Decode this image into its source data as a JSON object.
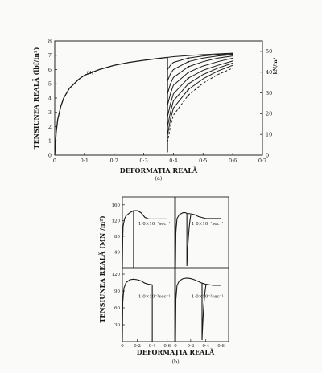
{
  "chart_data": [
    {
      "type": "line",
      "caption": "(a)",
      "xlabel": "DEFORMAȚIA REALĂ",
      "ylabel": "TENSIUNEA REALĂ (lbf/in²)",
      "y2label": "kN/m²",
      "xlim": [
        0,
        0.7
      ],
      "ylim": [
        0,
        8
      ],
      "y2lim": [
        0,
        55
      ],
      "xticks": [
        "0",
        "0·1",
        "0·2",
        "0·3",
        "0·4",
        "0·5",
        "0·6",
        "0·7"
      ],
      "yticks": [
        "0",
        "1",
        "2",
        "3",
        "4",
        "5",
        "6",
        "7",
        "8"
      ],
      "y2ticks": [
        "0",
        "10",
        "20",
        "30",
        "40",
        "50"
      ],
      "annotation": "(d)",
      "series": [
        {
          "x": [
            0,
            0.005,
            0.01,
            0.02,
            0.03,
            0.05,
            0.08,
            0.1,
            0.15,
            0.2,
            0.25,
            0.3,
            0.35,
            0.38
          ],
          "y": [
            0,
            1.6,
            2.5,
            3.4,
            4.0,
            4.7,
            5.3,
            5.6,
            6.0,
            6.3,
            6.5,
            6.65,
            6.78,
            6.85
          ]
        },
        {
          "x": [
            0.38,
            0.4,
            0.45,
            0.5,
            0.55,
            0.6
          ],
          "y": [
            6.85,
            6.9,
            6.98,
            7.05,
            7.1,
            7.15
          ]
        },
        {
          "x": [
            0.38,
            0.39,
            0.4,
            0.45,
            0.5,
            0.55,
            0.6
          ],
          "y": [
            6.0,
            6.3,
            6.5,
            6.8,
            6.95,
            7.05,
            7.1
          ]
        },
        {
          "x": [
            0.38,
            0.39,
            0.4,
            0.45,
            0.5,
            0.55,
            0.6
          ],
          "y": [
            5.2,
            5.7,
            6.0,
            6.55,
            6.8,
            6.95,
            7.05
          ]
        },
        {
          "x": [
            0.38,
            0.39,
            0.4,
            0.45,
            0.5,
            0.55,
            0.6
          ],
          "y": [
            4.3,
            5.0,
            5.45,
            6.2,
            6.55,
            6.8,
            6.95
          ]
        },
        {
          "x": [
            0.38,
            0.39,
            0.4,
            0.45,
            0.5,
            0.55,
            0.6
          ],
          "y": [
            3.5,
            4.3,
            4.9,
            5.8,
            6.25,
            6.55,
            6.8
          ]
        },
        {
          "x": [
            0.38,
            0.39,
            0.4,
            0.45,
            0.5,
            0.55,
            0.6
          ],
          "y": [
            2.7,
            3.6,
            4.3,
            5.4,
            5.95,
            6.3,
            6.6
          ]
        },
        {
          "x": [
            0.38,
            0.39,
            0.4,
            0.45,
            0.5,
            0.55,
            0.6
          ],
          "y": [
            2.0,
            3.0,
            3.8,
            5.0,
            5.65,
            6.1,
            6.45
          ]
        },
        {
          "x": [
            0.38,
            0.39,
            0.4,
            0.45,
            0.5,
            0.55,
            0.6
          ],
          "y": [
            1.4,
            2.5,
            3.3,
            4.6,
            5.35,
            5.9,
            6.3
          ]
        },
        {
          "x": [
            0.38,
            0.39,
            0.4,
            0.45,
            0.5,
            0.55,
            0.6
          ],
          "y": [
            0.9,
            2.0,
            2.8,
            4.2,
            5.05,
            5.65,
            6.1
          ],
          "dashed": true
        }
      ]
    },
    {
      "type": "line",
      "caption": "(b)",
      "xlabel": "DEFORMAȚIA REALĂ",
      "ylabel": "TENSIUNEA REALĂ (MN /m²)",
      "panels": [
        {
          "label": "1·0×10⁻¹sec⁻¹",
          "xlim": [
            0,
            0.7
          ],
          "ylim": [
            0,
            180
          ],
          "xticks": [],
          "yticks": [
            "40",
            "80",
            "120",
            "160"
          ],
          "x": [
            0,
            0.005,
            0.01,
            0.03,
            0.05,
            0.1,
            0.15,
            0.2,
            0.25,
            0.3,
            0.35,
            0.4,
            0.5,
            0.6
          ],
          "y": [
            0,
            80,
            105,
            125,
            132,
            140,
            145,
            145,
            140,
            128,
            124,
            124,
            124,
            124
          ],
          "drop_x": 0.15
        },
        {
          "label": "1·0×10⁻¹sec⁻¹",
          "xlim": [
            0,
            0.7
          ],
          "ylim": [
            0,
            180
          ],
          "xticks": [],
          "yticks": [],
          "x": [
            0,
            0.005,
            0.02,
            0.05,
            0.1,
            0.13,
            0.15,
            0.2,
            0.25,
            0.3,
            0.4,
            0.5,
            0.6
          ],
          "y": [
            0,
            90,
            125,
            135,
            140,
            140,
            138,
            137,
            135,
            130,
            125,
            125,
            125
          ],
          "reload_x": 0.15
        },
        {
          "label": "1·0×10⁻³sec⁻¹",
          "xlim": [
            0,
            0.7
          ],
          "ylim": [
            0,
            130
          ],
          "xticks": [
            "0",
            "0·2",
            "0·4",
            "0·6"
          ],
          "yticks": [
            "30",
            "60",
            "90",
            "120"
          ],
          "x": [
            0,
            0.005,
            0.02,
            0.05,
            0.1,
            0.15,
            0.2,
            0.25,
            0.3,
            0.35,
            0.4
          ],
          "y": [
            0,
            70,
            95,
            105,
            110,
            111,
            110,
            108,
            104,
            102,
            101
          ],
          "drop_x": 0.4
        },
        {
          "label": "1·0×10⁻³sec⁻¹",
          "xlim": [
            0,
            0.7
          ],
          "ylim": [
            0,
            130
          ],
          "xticks": [
            "0",
            "0·2",
            "0·4",
            "0·6"
          ],
          "yticks": [],
          "x": [
            0,
            0.005,
            0.02,
            0.05,
            0.1,
            0.15,
            0.2,
            0.25,
            0.3,
            0.35,
            0.4,
            0.5,
            0.6
          ],
          "y": [
            0,
            75,
            100,
            108,
            112,
            113,
            112,
            110,
            107,
            104,
            102,
            100,
            100
          ],
          "reload_x": 0.35
        }
      ]
    }
  ]
}
